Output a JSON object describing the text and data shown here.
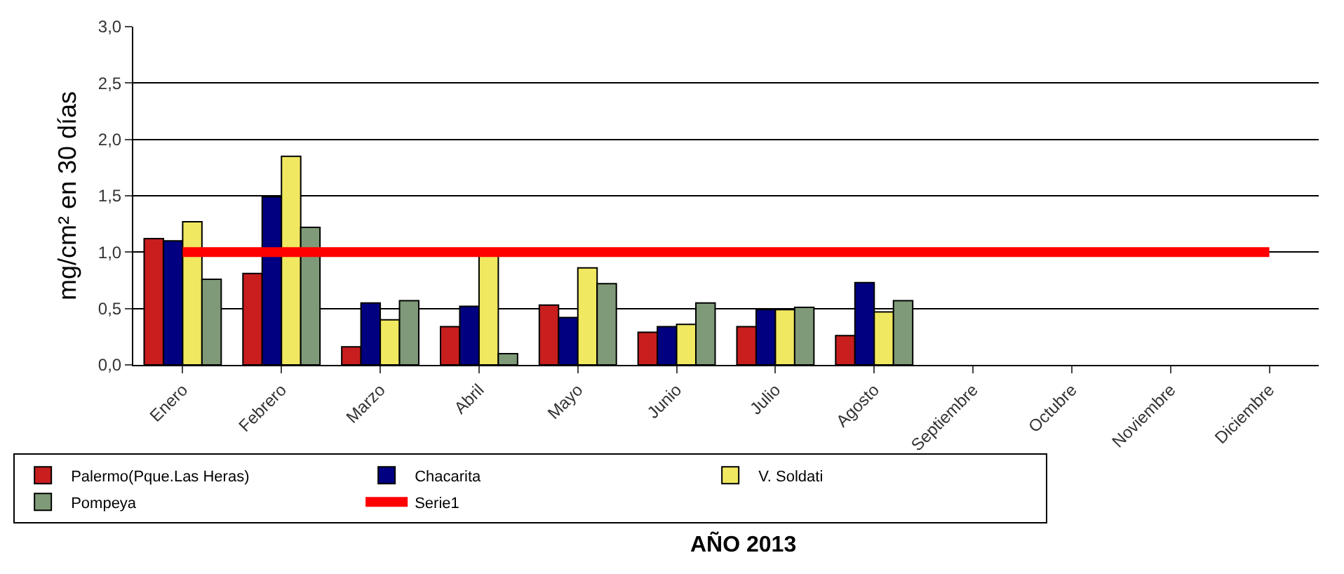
{
  "chart_data": {
    "type": "bar",
    "ylabel": "mg/cm² en 30 días",
    "xlabel": "AÑO 2013",
    "categories": [
      "Enero",
      "Febrero",
      "Marzo",
      "Abril",
      "Mayo",
      "Junio",
      "Julio",
      "Agosto",
      "Septiembre",
      "Octubre",
      "Noviembre",
      "Diciembre"
    ],
    "series": [
      {
        "name": "Palermo(Pque.Las Heras)",
        "color": "#c81e1e",
        "values": [
          1.12,
          0.81,
          0.16,
          0.34,
          0.53,
          0.29,
          0.34,
          0.26,
          null,
          null,
          null,
          null
        ]
      },
      {
        "name": "Chacarita",
        "color": "#000080",
        "values": [
          1.1,
          1.49,
          0.55,
          0.52,
          0.42,
          0.34,
          0.49,
          0.73,
          null,
          null,
          null,
          null
        ]
      },
      {
        "name": "V. Soldati",
        "color": "#f0e860",
        "values": [
          1.27,
          1.85,
          0.4,
          0.98,
          0.86,
          0.36,
          0.49,
          0.47,
          null,
          null,
          null,
          null
        ]
      },
      {
        "name": "Pompeya",
        "color": "#7f9a78",
        "values": [
          0.76,
          1.22,
          0.57,
          0.1,
          0.72,
          0.55,
          0.51,
          0.57,
          null,
          null,
          null,
          null
        ]
      },
      {
        "name": "Serie1",
        "type": "line",
        "color": "#ff0000",
        "values": [
          1,
          1,
          1,
          1,
          1,
          1,
          1,
          1,
          1,
          1,
          1,
          1
        ]
      }
    ],
    "ylim": [
      0,
      3
    ],
    "yticks": [
      {
        "value": 0,
        "label": "0,0"
      },
      {
        "value": 0.5,
        "label": "0,5"
      },
      {
        "value": 1,
        "label": "1,0"
      },
      {
        "value": 1.5,
        "label": "1,5"
      },
      {
        "value": 2,
        "label": "2,0"
      },
      {
        "value": 2.5,
        "label": "2,5"
      },
      {
        "value": 3,
        "label": "3,0"
      }
    ],
    "grid": "y",
    "legend": "bottom left"
  }
}
